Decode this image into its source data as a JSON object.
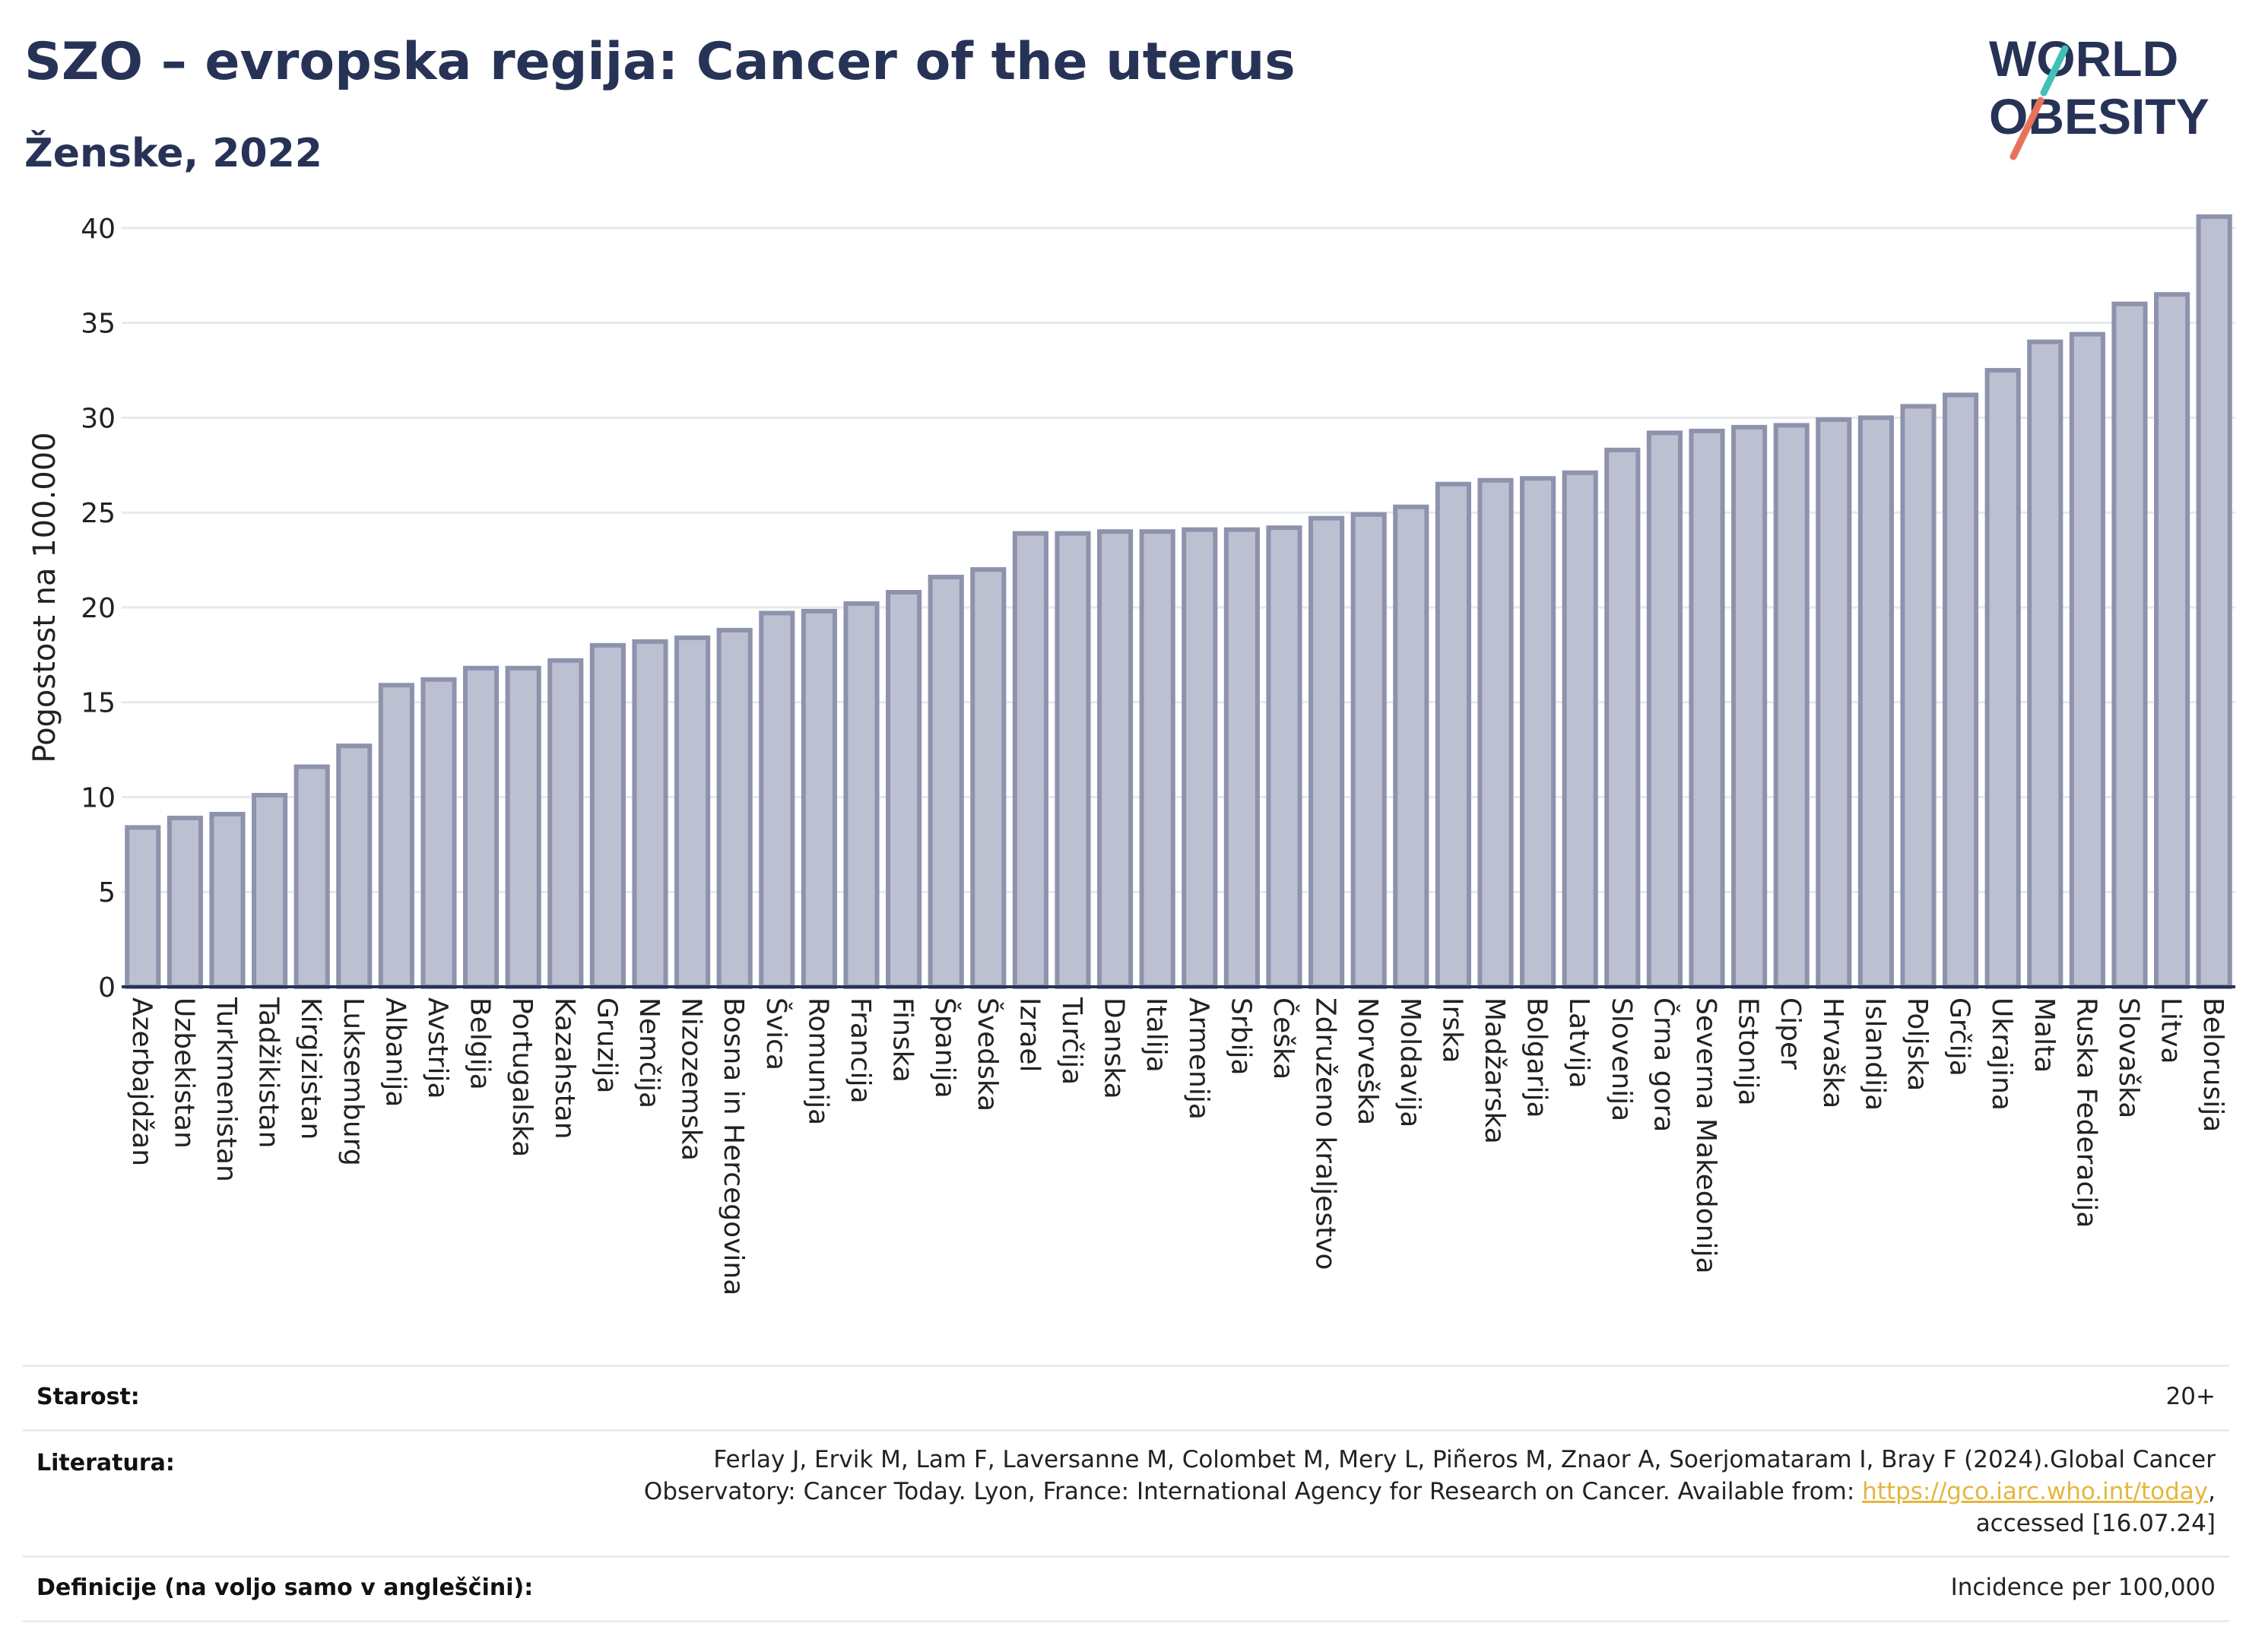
{
  "header": {
    "title": "SZO – evropska regija: Cancer of the uterus",
    "subtitle": "Ženske, 2022",
    "logo_line1": "WORLD",
    "logo_line2": "OBESITY"
  },
  "colors": {
    "bar_fill": "#bcc0d0",
    "bar_stroke": "#8e93ad",
    "text": "#273356",
    "grid": "#e6e9ee",
    "link": "#e4b63c"
  },
  "chart_data": {
    "type": "bar",
    "ylabel": "Pogostost na 100.000",
    "xlabel": "",
    "ylim": [
      0,
      42
    ],
    "yticks": [
      0,
      5,
      10,
      15,
      20,
      25,
      30,
      35,
      40
    ],
    "grid": true,
    "categories": [
      "Azerbajdžan",
      "Uzbekistan",
      "Turkmenistan",
      "Tadžikistan",
      "Kirgizistan",
      "Luksemburg",
      "Albanija",
      "Avstrija",
      "Belgija",
      "Portugalska",
      "Kazahstan",
      "Gruzija",
      "Nemčija",
      "Nizozemska",
      "Bosna in Hercegovina",
      "Švica",
      "Romunija",
      "Francija",
      "Finska",
      "Španija",
      "Švedska",
      "Izrael",
      "Turčija",
      "Danska",
      "Italija",
      "Armenija",
      "Srbija",
      "Češka",
      "Združeno kraljestvo",
      "Norveška",
      "Moldavija",
      "Irska",
      "Madžarska",
      "Bolgarija",
      "Latvija",
      "Slovenija",
      "Črna gora",
      "Severna Makedonija",
      "Estonija",
      "Ciper",
      "Hrvaška",
      "Islandija",
      "Poljska",
      "Grčija",
      "Ukrajina",
      "Malta",
      "Ruska Federacija",
      "Slovaška",
      "Litva",
      "Belorusija"
    ],
    "values": [
      8.4,
      8.9,
      9.1,
      10.1,
      11.6,
      12.7,
      15.9,
      16.2,
      16.8,
      16.8,
      17.2,
      18.0,
      18.2,
      18.4,
      18.8,
      19.7,
      19.8,
      20.2,
      20.8,
      21.6,
      22.0,
      23.9,
      23.9,
      24.0,
      24.0,
      24.1,
      24.1,
      24.2,
      24.7,
      24.9,
      25.3,
      26.5,
      26.7,
      26.8,
      27.1,
      28.3,
      29.2,
      29.3,
      29.5,
      29.6,
      29.9,
      30.0,
      30.6,
      31.2,
      32.5,
      34.0,
      34.4,
      36.0,
      36.5,
      40.6
    ]
  },
  "meta": {
    "age_label": "Starost:",
    "age_value": "20+",
    "lit_label": "Literatura:",
    "lit_text1": "Ferlay J, Ervik M, Lam F, Laversanne M, Colombet M, Mery L, Piñeros M, Znaor A, Soerjomataram I, Bray F (2024).Global Cancer Observatory: Cancer Today. Lyon, France: International Agency for Research on Cancer. Available from: ",
    "lit_link": "https://gco.iarc.who.int/today",
    "lit_text2": ", accessed [16.07.24]",
    "def_label": "Definicije (na voljo samo v angleščini):",
    "def_value": "Incidence per 100,000"
  }
}
